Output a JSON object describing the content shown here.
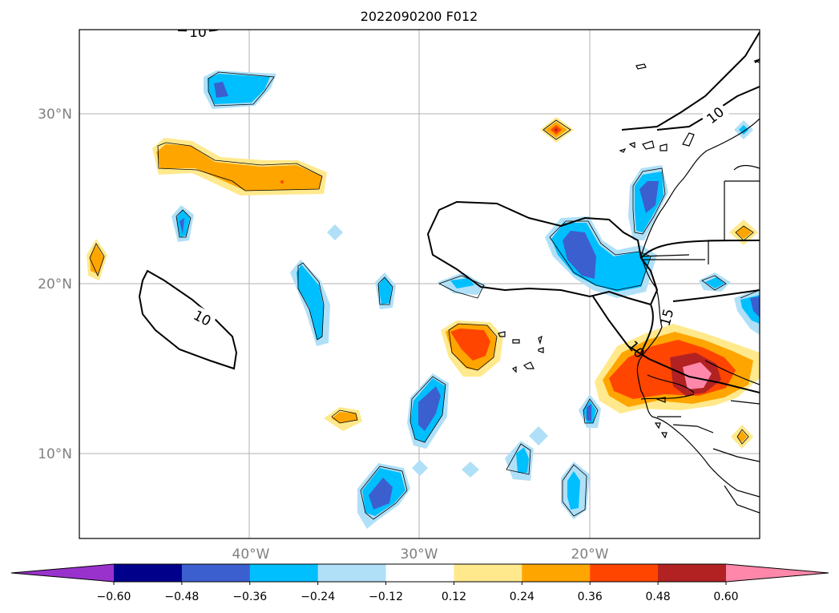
{
  "title": "2022090200 F012",
  "map": {
    "lat_labels": [
      "30°N",
      "20°N",
      "10°N"
    ],
    "lon_labels": [
      "40°W",
      "30°W",
      "20°W"
    ],
    "contour_labels": [
      "10",
      "10",
      "10",
      "15",
      "10"
    ]
  },
  "colorbar": {
    "ticks": [
      "−0.60",
      "−0.48",
      "−0.36",
      "−0.24",
      "−0.12",
      "0.12",
      "0.24",
      "0.36",
      "0.48",
      "0.60"
    ],
    "colors": [
      "#9932cc",
      "#00008b",
      "#3b5fcf",
      "#00bfff",
      "#b0e0f8",
      "#ffffff",
      "#ffe98c",
      "#ffa500",
      "#ff4500",
      "#b22222",
      "#ff88aa"
    ]
  },
  "chart_data": {
    "type": "heatmap",
    "title": "2022090200 F012",
    "extent_lon": [
      -50,
      -10
    ],
    "extent_lat": [
      5,
      35
    ],
    "gridlines": true,
    "levels": [
      -0.6,
      -0.48,
      -0.36,
      -0.24,
      -0.12,
      0.12,
      0.24,
      0.36,
      0.48,
      0.6
    ],
    "contour_levels_labeled": [
      10,
      15
    ],
    "features": [
      {
        "lon": -42,
        "lat": 31.5,
        "sign": "negative",
        "peak": -0.4
      },
      {
        "lon": -41,
        "lat": 27,
        "sign": "positive",
        "peak": 0.36
      },
      {
        "lon": -38,
        "lat": 26,
        "sign": "positive",
        "peak": 0.36
      },
      {
        "lon": -44,
        "lat": 23.5,
        "sign": "negative",
        "peak": -0.36
      },
      {
        "lon": -49,
        "lat": 21,
        "sign": "positive",
        "peak": 0.3
      },
      {
        "lon": -35,
        "lat": 23,
        "sign": "negative",
        "peak": -0.2
      },
      {
        "lon": -36.5,
        "lat": 19,
        "sign": "negative",
        "peak": -0.36
      },
      {
        "lon": -32,
        "lat": 19.5,
        "sign": "negative",
        "peak": -0.3
      },
      {
        "lon": -27,
        "lat": 20,
        "sign": "negative",
        "peak": -0.24
      },
      {
        "lon": -21,
        "lat": 21.5,
        "sign": "negative",
        "peak": -0.48
      },
      {
        "lon": -18,
        "lat": 24.5,
        "sign": "negative",
        "peak": -0.48
      },
      {
        "lon": -22,
        "lat": 29,
        "sign": "positive",
        "peak": 0.45
      },
      {
        "lon": -27,
        "lat": 16.5,
        "sign": "positive",
        "peak": 0.4
      },
      {
        "lon": -30,
        "lat": 12.5,
        "sign": "negative",
        "peak": -0.48
      },
      {
        "lon": -34.5,
        "lat": 12,
        "sign": "positive",
        "peak": 0.35
      },
      {
        "lon": -32.5,
        "lat": 7.5,
        "sign": "negative",
        "peak": -0.48
      },
      {
        "lon": -24,
        "lat": 9.5,
        "sign": "negative",
        "peak": -0.3
      },
      {
        "lon": -21,
        "lat": 8,
        "sign": "negative",
        "peak": -0.36
      },
      {
        "lon": -20,
        "lat": 12.5,
        "sign": "negative",
        "peak": -0.36
      },
      {
        "lon": -16,
        "lat": 14.5,
        "sign": "positive",
        "peak": 0.6
      },
      {
        "lon": -11,
        "lat": 23,
        "sign": "positive",
        "peak": 0.35
      },
      {
        "lon": -11,
        "lat": 11,
        "sign": "positive",
        "peak": 0.35
      },
      {
        "lon": -12.5,
        "lat": 20,
        "sign": "negative",
        "peak": -0.24
      },
      {
        "lon": -10.5,
        "lat": 19,
        "sign": "negative",
        "peak": -0.4
      }
    ]
  }
}
